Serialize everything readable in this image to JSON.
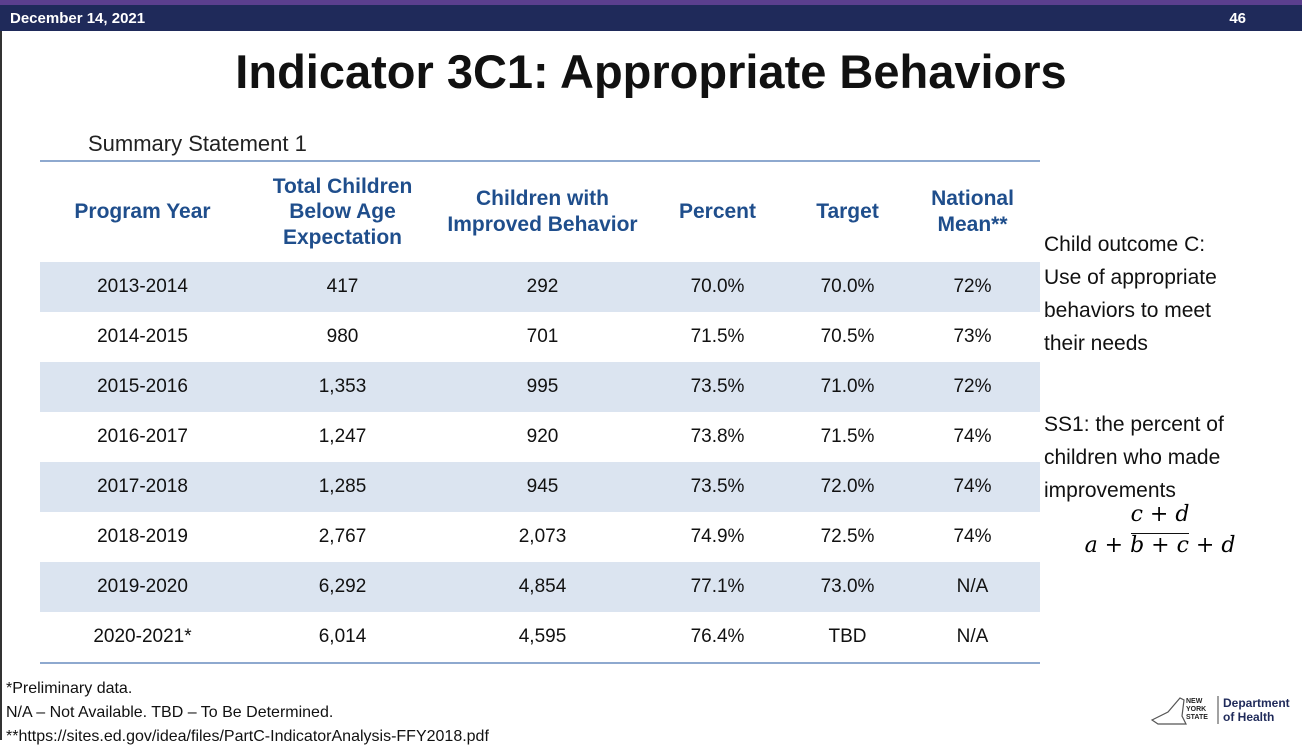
{
  "header": {
    "date": "December 14, 2021",
    "page": "46"
  },
  "title": "Indicator 3C1: Appropriate Behaviors",
  "subtitle": "Summary Statement 1",
  "table": {
    "columns": [
      "Program Year",
      "Total Children Below Age Expectation",
      "Children with Improved Behavior",
      "Percent",
      "Target",
      "National Mean**"
    ],
    "rows": [
      [
        "2013-2014",
        "417",
        "292",
        "70.0%",
        "70.0%",
        "72%"
      ],
      [
        "2014-2015",
        "980",
        "701",
        "71.5%",
        "70.5%",
        "73%"
      ],
      [
        "2015-2016",
        "1,353",
        "995",
        "73.5%",
        "71.0%",
        "72%"
      ],
      [
        "2016-2017",
        "1,247",
        "920",
        "73.8%",
        "71.5%",
        "74%"
      ],
      [
        "2017-2018",
        "1,285",
        "945",
        "73.5%",
        "72.0%",
        "74%"
      ],
      [
        "2018-2019",
        "2,767",
        "2,073",
        "74.9%",
        "72.5%",
        "74%"
      ],
      [
        "2019-2020",
        "6,292",
        "4,854",
        "77.1%",
        "73.0%",
        "N/A"
      ],
      [
        "2020-2021*",
        "6,014",
        "4,595",
        "76.4%",
        "TBD",
        "N/A"
      ]
    ]
  },
  "side_note": {
    "outcome_lines": [
      "Child outcome C:",
      "Use of appropriate",
      "behaviors to meet",
      "their needs"
    ],
    "ss1_lines": [
      "SS1: the percent of",
      "children who made",
      "improvements"
    ],
    "formula": {
      "numerator": "c + d",
      "denominator": "a + b + c + d"
    }
  },
  "footnotes": [
    "*Preliminary data.",
    "N/A – Not Available. TBD – To Be Determined.",
    "**https://sites.ed.gov/idea/files/PartC-IndicatorAnalysis-FFY2018.pdf"
  ],
  "logo": {
    "state": "NEW YORK STATE",
    "department": "Department of Health"
  }
}
